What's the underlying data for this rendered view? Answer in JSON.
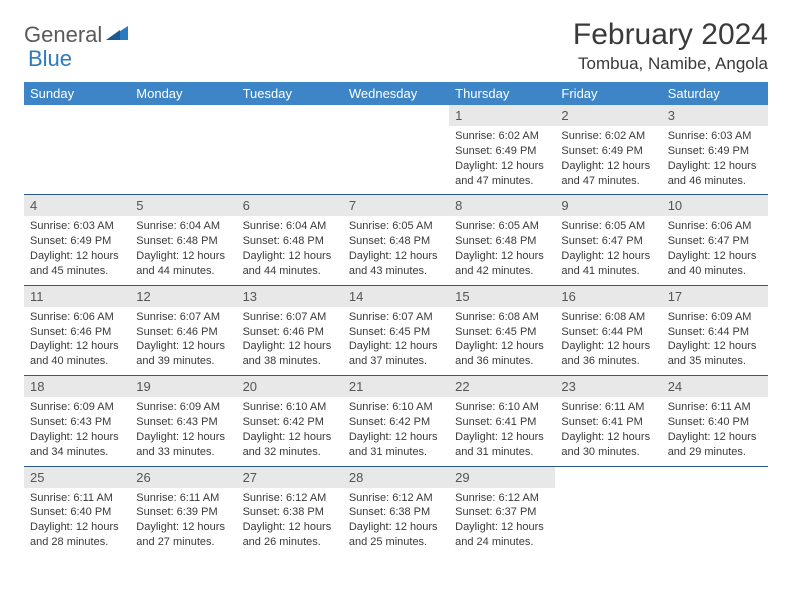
{
  "logo": {
    "text1": "General",
    "text2": "Blue"
  },
  "title": "February 2024",
  "location": "Tombua, Namibe, Angola",
  "colors": {
    "header_bg": "#3d85c6",
    "header_fg": "#ffffff",
    "daynum_bg": "#e8e8e8",
    "rule": "#2b5a8a",
    "logo_gray": "#5a5a5a",
    "logo_blue": "#2b7bbf"
  },
  "weekdays": [
    "Sunday",
    "Monday",
    "Tuesday",
    "Wednesday",
    "Thursday",
    "Friday",
    "Saturday"
  ],
  "weeks": [
    [
      null,
      null,
      null,
      null,
      {
        "n": "1",
        "sr": "6:02 AM",
        "ss": "6:49 PM",
        "dl": "12 hours and 47 minutes."
      },
      {
        "n": "2",
        "sr": "6:02 AM",
        "ss": "6:49 PM",
        "dl": "12 hours and 47 minutes."
      },
      {
        "n": "3",
        "sr": "6:03 AM",
        "ss": "6:49 PM",
        "dl": "12 hours and 46 minutes."
      }
    ],
    [
      {
        "n": "4",
        "sr": "6:03 AM",
        "ss": "6:49 PM",
        "dl": "12 hours and 45 minutes."
      },
      {
        "n": "5",
        "sr": "6:04 AM",
        "ss": "6:48 PM",
        "dl": "12 hours and 44 minutes."
      },
      {
        "n": "6",
        "sr": "6:04 AM",
        "ss": "6:48 PM",
        "dl": "12 hours and 44 minutes."
      },
      {
        "n": "7",
        "sr": "6:05 AM",
        "ss": "6:48 PM",
        "dl": "12 hours and 43 minutes."
      },
      {
        "n": "8",
        "sr": "6:05 AM",
        "ss": "6:48 PM",
        "dl": "12 hours and 42 minutes."
      },
      {
        "n": "9",
        "sr": "6:05 AM",
        "ss": "6:47 PM",
        "dl": "12 hours and 41 minutes."
      },
      {
        "n": "10",
        "sr": "6:06 AM",
        "ss": "6:47 PM",
        "dl": "12 hours and 40 minutes."
      }
    ],
    [
      {
        "n": "11",
        "sr": "6:06 AM",
        "ss": "6:46 PM",
        "dl": "12 hours and 40 minutes."
      },
      {
        "n": "12",
        "sr": "6:07 AM",
        "ss": "6:46 PM",
        "dl": "12 hours and 39 minutes."
      },
      {
        "n": "13",
        "sr": "6:07 AM",
        "ss": "6:46 PM",
        "dl": "12 hours and 38 minutes."
      },
      {
        "n": "14",
        "sr": "6:07 AM",
        "ss": "6:45 PM",
        "dl": "12 hours and 37 minutes."
      },
      {
        "n": "15",
        "sr": "6:08 AM",
        "ss": "6:45 PM",
        "dl": "12 hours and 36 minutes."
      },
      {
        "n": "16",
        "sr": "6:08 AM",
        "ss": "6:44 PM",
        "dl": "12 hours and 36 minutes."
      },
      {
        "n": "17",
        "sr": "6:09 AM",
        "ss": "6:44 PM",
        "dl": "12 hours and 35 minutes."
      }
    ],
    [
      {
        "n": "18",
        "sr": "6:09 AM",
        "ss": "6:43 PM",
        "dl": "12 hours and 34 minutes."
      },
      {
        "n": "19",
        "sr": "6:09 AM",
        "ss": "6:43 PM",
        "dl": "12 hours and 33 minutes."
      },
      {
        "n": "20",
        "sr": "6:10 AM",
        "ss": "6:42 PM",
        "dl": "12 hours and 32 minutes."
      },
      {
        "n": "21",
        "sr": "6:10 AM",
        "ss": "6:42 PM",
        "dl": "12 hours and 31 minutes."
      },
      {
        "n": "22",
        "sr": "6:10 AM",
        "ss": "6:41 PM",
        "dl": "12 hours and 31 minutes."
      },
      {
        "n": "23",
        "sr": "6:11 AM",
        "ss": "6:41 PM",
        "dl": "12 hours and 30 minutes."
      },
      {
        "n": "24",
        "sr": "6:11 AM",
        "ss": "6:40 PM",
        "dl": "12 hours and 29 minutes."
      }
    ],
    [
      {
        "n": "25",
        "sr": "6:11 AM",
        "ss": "6:40 PM",
        "dl": "12 hours and 28 minutes."
      },
      {
        "n": "26",
        "sr": "6:11 AM",
        "ss": "6:39 PM",
        "dl": "12 hours and 27 minutes."
      },
      {
        "n": "27",
        "sr": "6:12 AM",
        "ss": "6:38 PM",
        "dl": "12 hours and 26 minutes."
      },
      {
        "n": "28",
        "sr": "6:12 AM",
        "ss": "6:38 PM",
        "dl": "12 hours and 25 minutes."
      },
      {
        "n": "29",
        "sr": "6:12 AM",
        "ss": "6:37 PM",
        "dl": "12 hours and 24 minutes."
      },
      null,
      null
    ]
  ],
  "labels": {
    "sunrise": "Sunrise:",
    "sunset": "Sunset:",
    "daylight": "Daylight:"
  }
}
